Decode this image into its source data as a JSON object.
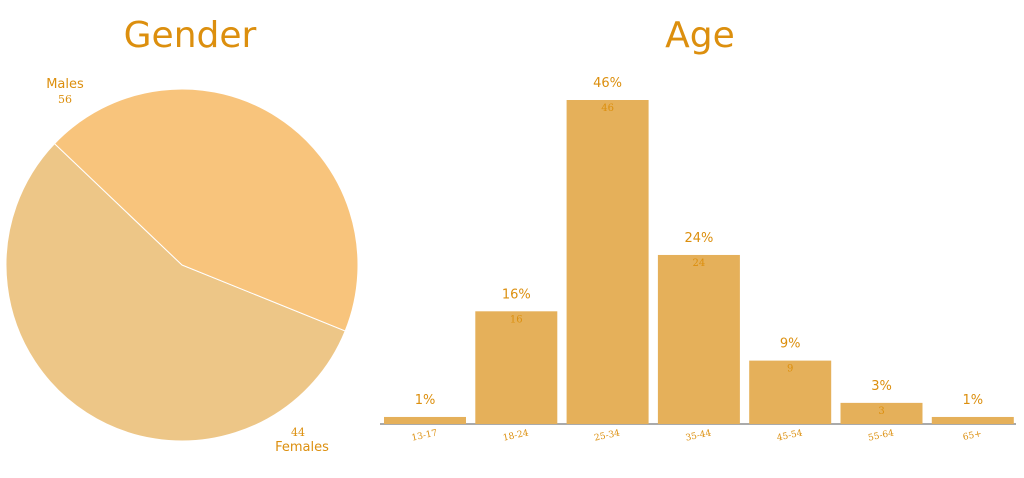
{
  "colors": {
    "title": "#dc8f0e",
    "bar": "#e5b05a",
    "axis": "#555555",
    "pie": [
      "#edc687",
      "#f8c47c"
    ]
  },
  "chart_data": [
    {
      "type": "pie",
      "title": "Gender",
      "slices": [
        {
          "label": "Males",
          "value": 56
        },
        {
          "label": "Females",
          "value": 44
        }
      ]
    },
    {
      "type": "bar",
      "title": "Age",
      "categories": [
        "13-17",
        "18-24",
        "25-34",
        "35-44",
        "45-54",
        "55-64",
        "65+"
      ],
      "values": [
        1,
        16,
        46,
        24,
        9,
        3,
        1
      ],
      "pct_labels": [
        "1%",
        "16%",
        "46%",
        "24%",
        "9%",
        "3%",
        "1%"
      ],
      "ylim": [
        0,
        46
      ]
    }
  ]
}
